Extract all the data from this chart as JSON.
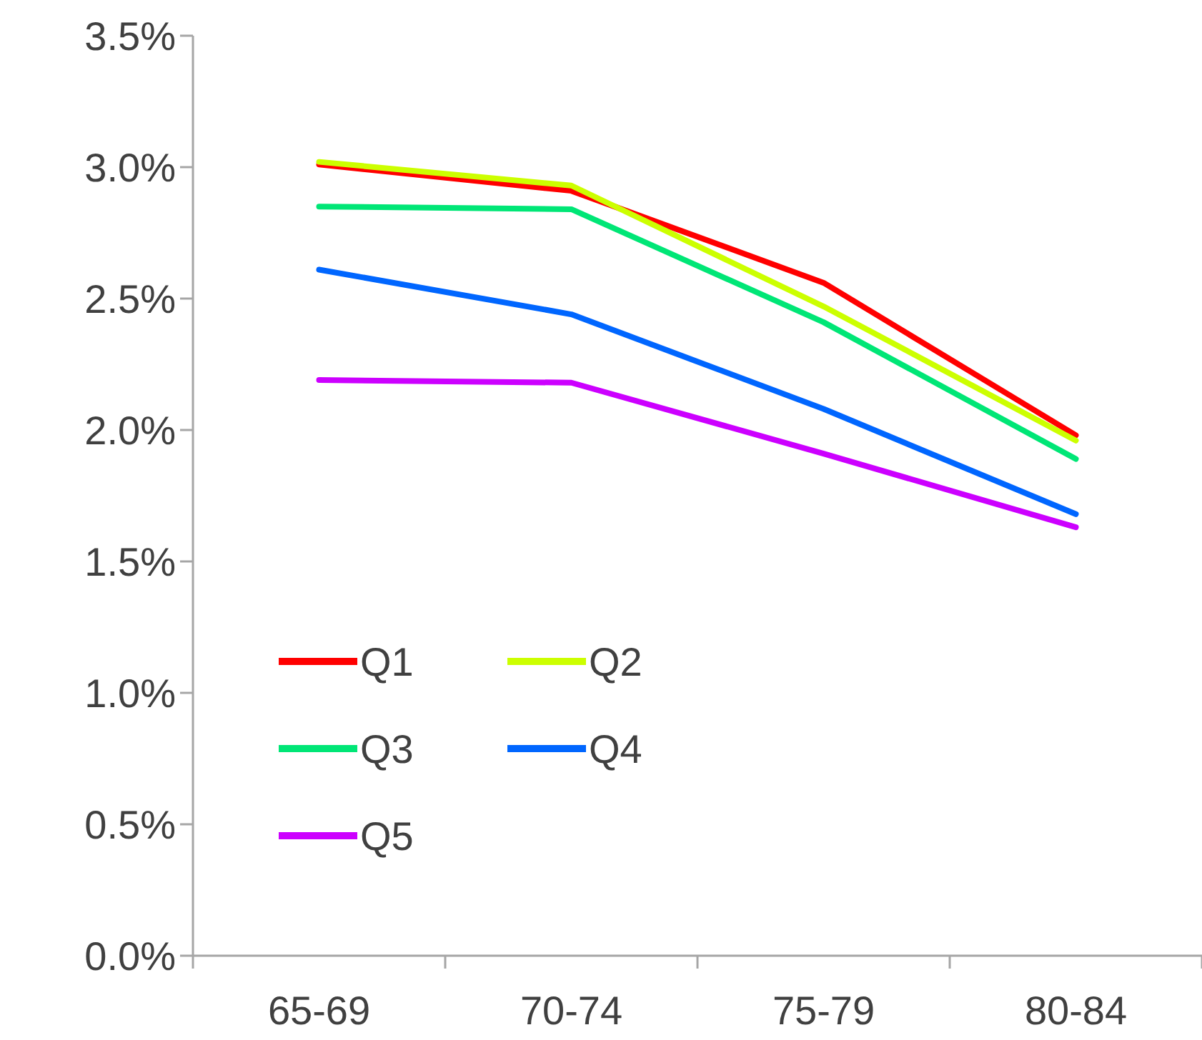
{
  "chart_data": {
    "type": "line",
    "categories": [
      "65-69",
      "70-74",
      "75-79",
      "80-84"
    ],
    "series": [
      {
        "name": "Q1",
        "color": "#ff0000",
        "values": [
          3.01,
          2.91,
          2.56,
          1.98
        ]
      },
      {
        "name": "Q2",
        "color": "#ccff00",
        "values": [
          3.02,
          2.93,
          2.47,
          1.96
        ]
      },
      {
        "name": "Q3",
        "color": "#00e676",
        "values": [
          2.85,
          2.84,
          2.41,
          1.89
        ]
      },
      {
        "name": "Q4",
        "color": "#0066ff",
        "values": [
          2.61,
          2.44,
          2.08,
          1.68
        ]
      },
      {
        "name": "Q5",
        "color": "#cc00ff",
        "values": [
          2.19,
          2.18,
          1.91,
          1.63
        ]
      }
    ],
    "ylim": [
      0,
      3.5
    ],
    "yticks": [
      {
        "value": 0,
        "label": "0.0%"
      },
      {
        "value": 0.5,
        "label": "0.5%"
      },
      {
        "value": 1,
        "label": "1.0%"
      },
      {
        "value": 1.5,
        "label": "1.5%"
      },
      {
        "value": 2,
        "label": "2.0%"
      },
      {
        "value": 2.5,
        "label": "2.5%"
      },
      {
        "value": 3,
        "label": "3.0%"
      },
      {
        "value": 3.5,
        "label": "3.5%"
      }
    ],
    "grid": false,
    "legend": "bottom left",
    "marker": "none",
    "line_style": "solid"
  }
}
